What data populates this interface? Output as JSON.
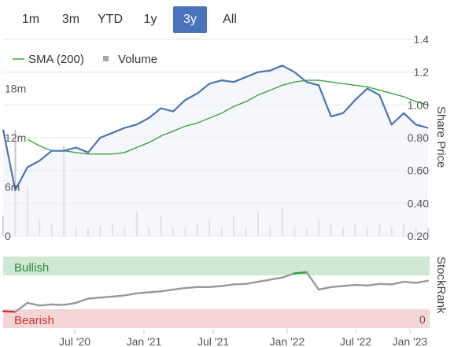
{
  "range_buttons": [
    {
      "label": "1m",
      "active": false
    },
    {
      "label": "3m",
      "active": false
    },
    {
      "label": "YTD",
      "active": false
    },
    {
      "label": "1y",
      "active": false
    },
    {
      "label": "3y",
      "active": true
    },
    {
      "label": "All",
      "active": false
    }
  ],
  "legend": {
    "sma_label": "SMA (200)",
    "volume_label": "Volume"
  },
  "colors": {
    "price": "#4a72bd",
    "sma": "#3aa63a",
    "volume": "#c8c8c8",
    "active_button": "#4a72bd",
    "bullish_band": "#cfe8d4",
    "bearish_band": "#f4d5d5",
    "rank_neutral": "#999999",
    "rank_bullish": "#2e9e3e",
    "rank_bearish": "#cc3333"
  },
  "chart_data": [
    {
      "type": "line",
      "name": "price-panel",
      "y_axis_right_title": "Share Price",
      "y_ticks_right": [
        "1.4",
        "1.2",
        "1.00",
        "0.80",
        "0.60",
        "0.40",
        "0.20"
      ],
      "ylim_right": [
        0.2,
        1.4
      ],
      "y_ticks_left": [
        "18m",
        "12m",
        "6m",
        "0"
      ],
      "volume_ylim": [
        0,
        24
      ],
      "grid": true,
      "legend_position": "top-left",
      "x": [
        "2020-03",
        "2020-04",
        "2020-05",
        "2020-06",
        "2020-07",
        "2020-08",
        "2020-09",
        "2020-10",
        "2020-11",
        "2020-12",
        "2021-01",
        "2021-02",
        "2021-03",
        "2021-04",
        "2021-05",
        "2021-06",
        "2021-07",
        "2021-08",
        "2021-09",
        "2021-10",
        "2021-11",
        "2021-12",
        "2022-01",
        "2022-02",
        "2022-03",
        "2022-04",
        "2022-05",
        "2022-06",
        "2022-07",
        "2022-08",
        "2022-09",
        "2022-10",
        "2022-11",
        "2022-12",
        "2023-01",
        "2023-02"
      ],
      "series": [
        {
          "name": "Share Price",
          "values": [
            0.85,
            0.48,
            0.62,
            0.66,
            0.72,
            0.72,
            0.74,
            0.71,
            0.8,
            0.83,
            0.86,
            0.88,
            0.92,
            0.98,
            0.96,
            1.03,
            1.07,
            1.13,
            1.15,
            1.14,
            1.17,
            1.2,
            1.21,
            1.24,
            1.2,
            1.14,
            1.12,
            0.93,
            0.95,
            1.03,
            1.1,
            1.06,
            0.88,
            0.95,
            0.88,
            0.86
          ]
        },
        {
          "name": "SMA (200)",
          "values": [
            null,
            null,
            0.79,
            0.75,
            0.72,
            0.72,
            0.71,
            0.7,
            0.7,
            0.7,
            0.71,
            0.74,
            0.77,
            0.81,
            0.84,
            0.87,
            0.89,
            0.92,
            0.95,
            0.99,
            1.02,
            1.06,
            1.09,
            1.12,
            1.14,
            1.15,
            1.15,
            1.14,
            1.13,
            1.12,
            1.11,
            1.09,
            1.07,
            1.05,
            1.02,
            1.0
          ]
        },
        {
          "name": "Volume",
          "values": [
            2.5,
            13,
            6,
            2,
            1.5,
            11,
            1,
            1,
            1.2,
            1.5,
            1,
            3,
            1,
            2.5,
            1,
            1,
            1.5,
            2,
            1,
            2.5,
            1,
            3,
            1,
            3.5,
            1,
            1,
            2,
            1.5,
            1,
            1.5,
            1,
            1.5,
            1,
            1.5,
            1,
            1
          ]
        }
      ]
    },
    {
      "type": "line",
      "name": "stockrank-panel",
      "y_axis_right_title": "StockRank",
      "y_ticks_right": [
        "0"
      ],
      "bands": [
        {
          "label": "Bullish",
          "position": "top"
        },
        {
          "label": "Bearish",
          "position": "bottom"
        }
      ],
      "x_ticks": [
        "Jul '20",
        "Jan '21",
        "Jul '21",
        "Jan '22",
        "Jul '22",
        "Jan '23"
      ],
      "series": [
        {
          "name": "StockRank",
          "values": [
            14,
            13,
            30,
            25,
            27,
            26,
            30,
            38,
            40,
            42,
            44,
            48,
            50,
            52,
            55,
            58,
            60,
            60,
            62,
            65,
            66,
            70,
            74,
            78,
            86,
            88,
            55,
            60,
            62,
            64,
            63,
            66,
            65,
            70,
            68,
            72
          ]
        }
      ]
    }
  ]
}
